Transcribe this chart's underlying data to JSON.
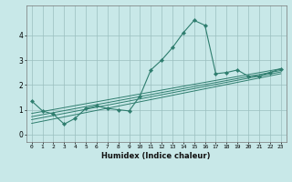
{
  "xlabel": "Humidex (Indice chaleur)",
  "ylabel": "",
  "bg_color": "#c8e8e8",
  "line_color": "#2e7d6e",
  "xlim": [
    -0.5,
    23.5
  ],
  "ylim": [
    -0.3,
    5.2
  ],
  "xticks": [
    0,
    1,
    2,
    3,
    4,
    5,
    6,
    7,
    8,
    9,
    10,
    11,
    12,
    13,
    14,
    15,
    16,
    17,
    18,
    19,
    20,
    21,
    22,
    23
  ],
  "yticks": [
    0,
    1,
    2,
    3,
    4
  ],
  "main_series": {
    "x": [
      0,
      1,
      2,
      3,
      4,
      5,
      6,
      7,
      8,
      9,
      10,
      11,
      12,
      13,
      14,
      15,
      16,
      17,
      18,
      19,
      20,
      21,
      22,
      23
    ],
    "y": [
      1.35,
      0.95,
      0.82,
      0.42,
      0.65,
      1.05,
      1.15,
      1.05,
      1.0,
      0.95,
      1.55,
      2.6,
      3.0,
      3.5,
      4.1,
      4.6,
      4.4,
      2.45,
      2.5,
      2.6,
      2.35,
      2.35,
      2.5,
      2.65
    ]
  },
  "linear_lines": [
    {
      "x0": 0,
      "y0": 0.85,
      "x1": 23,
      "y1": 2.65
    },
    {
      "x0": 0,
      "y0": 0.72,
      "x1": 23,
      "y1": 2.58
    },
    {
      "x0": 0,
      "y0": 0.6,
      "x1": 23,
      "y1": 2.52
    },
    {
      "x0": 0,
      "y0": 0.45,
      "x1": 23,
      "y1": 2.45
    }
  ]
}
